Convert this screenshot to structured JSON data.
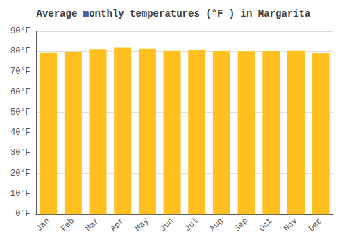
{
  "chart_data": {
    "type": "bar",
    "title": "Average monthly temperatures (°F ) in Margarita",
    "categories": [
      "Jan",
      "Feb",
      "Mar",
      "Apr",
      "May",
      "Jun",
      "Jul",
      "Aug",
      "Sep",
      "Oct",
      "Nov",
      "Dec"
    ],
    "values": [
      79.5,
      79.8,
      81.0,
      82.0,
      81.5,
      80.5,
      80.8,
      80.3,
      80.0,
      80.2,
      80.5,
      79.3
    ],
    "color": "#FFC020",
    "ylim": [
      0,
      90
    ],
    "yticks": [
      {
        "value": 0,
        "label": "0°F"
      },
      {
        "value": 10,
        "label": "10°F"
      },
      {
        "value": 20,
        "label": "20°F"
      },
      {
        "value": 30,
        "label": "30°F"
      },
      {
        "value": 40,
        "label": "40°F"
      },
      {
        "value": 50,
        "label": "50°F"
      },
      {
        "value": 60,
        "label": "60°F"
      },
      {
        "value": 70,
        "label": "70°F"
      },
      {
        "value": 80,
        "label": "80°F"
      },
      {
        "value": 90,
        "label": "90°F"
      }
    ],
    "grid": true
  }
}
